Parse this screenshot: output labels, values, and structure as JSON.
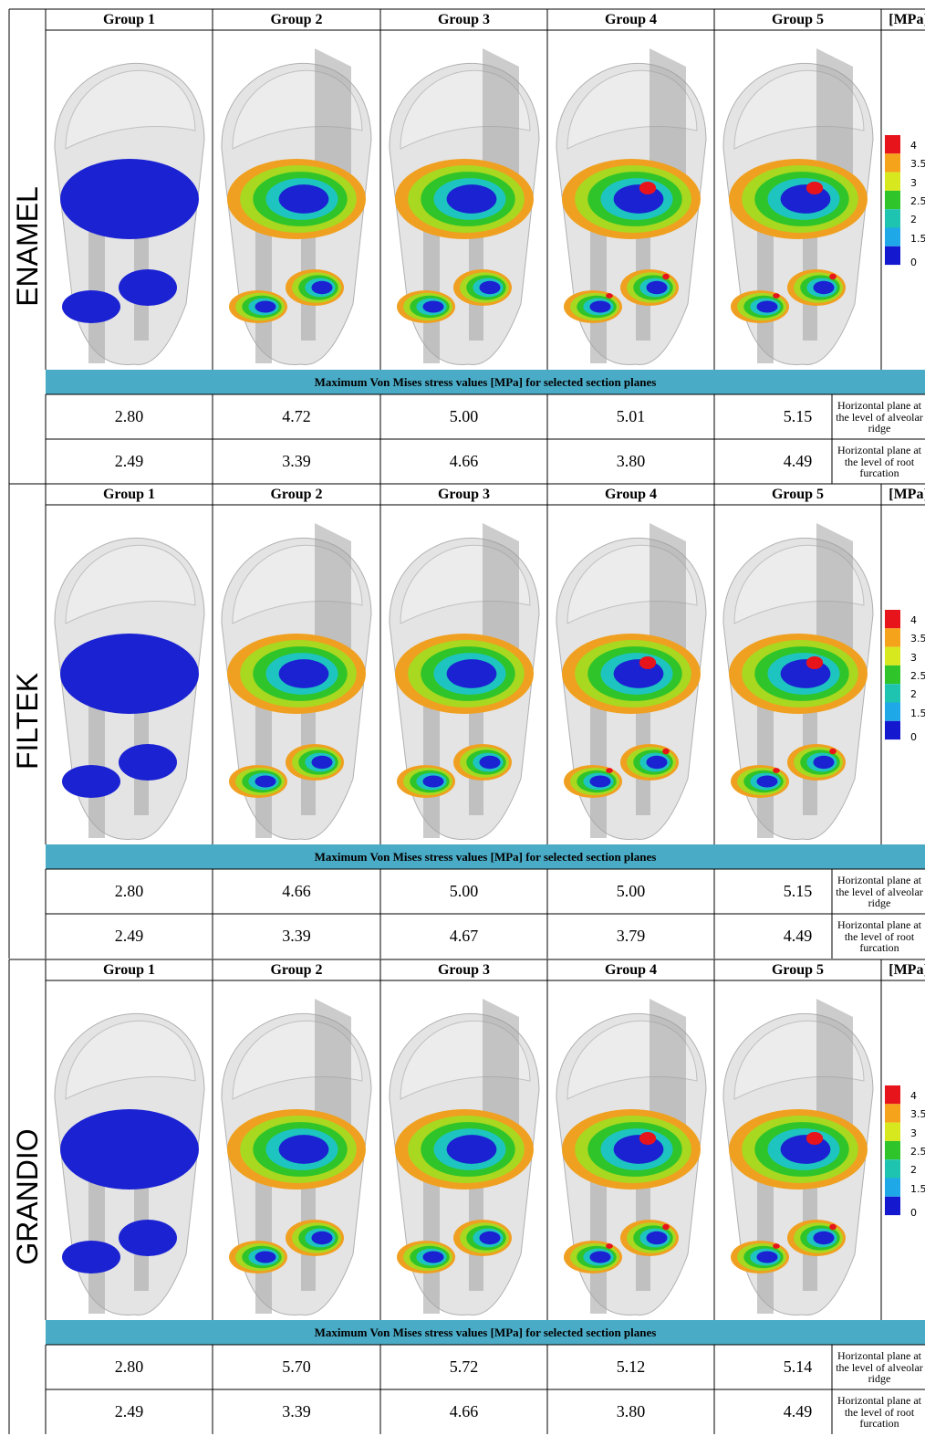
{
  "sections": [
    {
      "label": "ENAMEL",
      "headers": [
        "Group 1",
        "Group 2",
        "Group 3",
        "Group 4",
        "Group 5",
        "[MPa]"
      ],
      "caption": "Maximum Von Mises stress values [MPa] for selected section planes",
      "rows": [
        {
          "values": [
            "2.80",
            "4.72",
            "5.00",
            "5.01",
            "5.15"
          ],
          "label": "Horizontal plane at the level of alveolar ridge"
        },
        {
          "values": [
            "2.49",
            "3.39",
            "4.66",
            "3.80",
            "4.49"
          ],
          "label": "Horizontal plane at the level of root furcation"
        }
      ],
      "legend": [
        "4",
        "3.5",
        "3",
        "2.5",
        "2",
        "1.5",
        "0"
      ]
    },
    {
      "label": "FILTEK",
      "headers": [
        "Group 1",
        "Group 2",
        "Group 3",
        "Group 4",
        "Group 5",
        "[MPa]"
      ],
      "caption": "Maximum Von Mises stress values [MPa] for selected section planes",
      "rows": [
        {
          "values": [
            "2.80",
            "4.66",
            "5.00",
            "5.00",
            "5.15"
          ],
          "label": "Horizontal plane at the level of alveolar ridge"
        },
        {
          "values": [
            "2.49",
            "3.39",
            "4.67",
            "3.79",
            "4.49"
          ],
          "label": "Horizontal plane at the level of root furcation"
        }
      ],
      "legend": [
        "4",
        "3.5",
        "3",
        "2.5",
        "2",
        "1.5",
        "0"
      ]
    },
    {
      "label": "GRANDIO",
      "headers": [
        "Group 1",
        "Group 2",
        "Group 3",
        "Group 4",
        "Group 5",
        "[MPa]"
      ],
      "caption": "Maximum Von Mises stress values [MPa] for selected section planes",
      "rows": [
        {
          "values": [
            "2.80",
            "5.70",
            "5.72",
            "5.12",
            "5.14"
          ],
          "label": "Horizontal plane at the level of alveolar ridge"
        },
        {
          "values": [
            "2.49",
            "3.39",
            "4.66",
            "3.80",
            "4.49"
          ],
          "label": "Horizontal plane at the level of root furcation"
        }
      ],
      "legend": [
        "4",
        "3.5",
        "3",
        "2.5",
        "2",
        "1.5",
        "0"
      ]
    }
  ]
}
